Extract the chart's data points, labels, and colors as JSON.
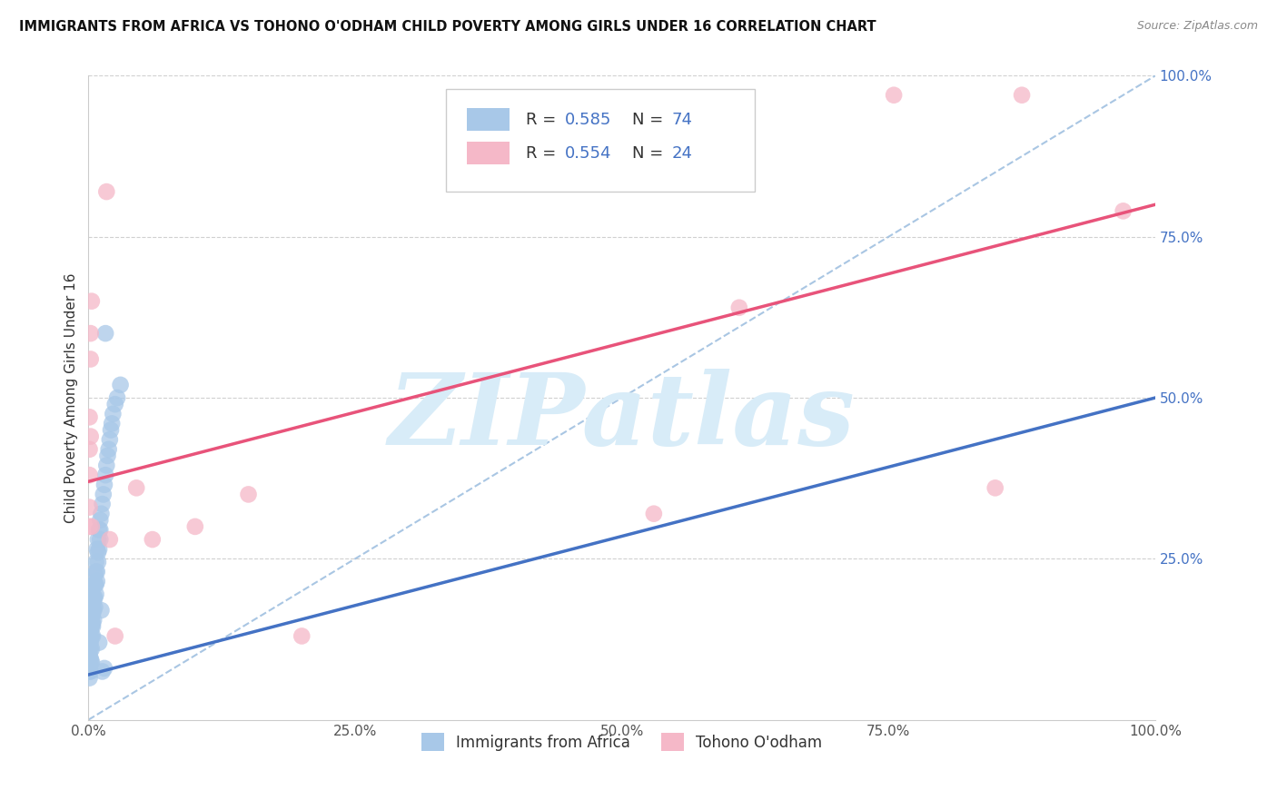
{
  "title": "IMMIGRANTS FROM AFRICA VS TOHONO O'ODHAM CHILD POVERTY AMONG GIRLS UNDER 16 CORRELATION CHART",
  "source": "Source: ZipAtlas.com",
  "ylabel": "Child Poverty Among Girls Under 16",
  "xlim": [
    0.0,
    1.0
  ],
  "ylim": [
    0.0,
    1.0
  ],
  "xticks": [
    0.0,
    0.25,
    0.5,
    0.75,
    1.0
  ],
  "xticklabels": [
    "0.0%",
    "25.0%",
    "50.0%",
    "75.0%",
    "100.0%"
  ],
  "yticks": [
    0.25,
    0.5,
    0.75,
    1.0
  ],
  "yticklabels": [
    "25.0%",
    "50.0%",
    "75.0%",
    "100.0%"
  ],
  "legend_R1": "0.585",
  "legend_N1": "74",
  "legend_R2": "0.554",
  "legend_N2": "24",
  "blue_color": "#a8c8e8",
  "pink_color": "#f5b8c8",
  "blue_line_color": "#4472c4",
  "pink_line_color": "#e8537a",
  "blue_dash_color": "#a0c0e0",
  "watermark_text": "ZIPatlas",
  "watermark_color": "#d8ecf8",
  "background_color": "#ffffff",
  "grid_color": "#d0d0d0",
  "blue_dots": [
    [
      0.001,
      0.085
    ],
    [
      0.001,
      0.1
    ],
    [
      0.001,
      0.12
    ],
    [
      0.001,
      0.095
    ],
    [
      0.001,
      0.11
    ],
    [
      0.001,
      0.075
    ],
    [
      0.001,
      0.13
    ],
    [
      0.001,
      0.08
    ],
    [
      0.001,
      0.145
    ],
    [
      0.001,
      0.065
    ],
    [
      0.002,
      0.155
    ],
    [
      0.002,
      0.09
    ],
    [
      0.002,
      0.13
    ],
    [
      0.002,
      0.11
    ],
    [
      0.002,
      0.075
    ],
    [
      0.002,
      0.14
    ],
    [
      0.002,
      0.12
    ],
    [
      0.002,
      0.095
    ],
    [
      0.003,
      0.17
    ],
    [
      0.003,
      0.13
    ],
    [
      0.003,
      0.11
    ],
    [
      0.003,
      0.145
    ],
    [
      0.003,
      0.09
    ],
    [
      0.003,
      0.155
    ],
    [
      0.004,
      0.19
    ],
    [
      0.004,
      0.15
    ],
    [
      0.004,
      0.13
    ],
    [
      0.004,
      0.165
    ],
    [
      0.004,
      0.175
    ],
    [
      0.004,
      0.145
    ],
    [
      0.005,
      0.21
    ],
    [
      0.005,
      0.17
    ],
    [
      0.005,
      0.155
    ],
    [
      0.005,
      0.185
    ],
    [
      0.005,
      0.19
    ],
    [
      0.006,
      0.225
    ],
    [
      0.006,
      0.19
    ],
    [
      0.006,
      0.175
    ],
    [
      0.006,
      0.21
    ],
    [
      0.007,
      0.245
    ],
    [
      0.007,
      0.21
    ],
    [
      0.007,
      0.195
    ],
    [
      0.007,
      0.23
    ],
    [
      0.008,
      0.265
    ],
    [
      0.008,
      0.23
    ],
    [
      0.008,
      0.215
    ],
    [
      0.009,
      0.28
    ],
    [
      0.009,
      0.245
    ],
    [
      0.009,
      0.26
    ],
    [
      0.01,
      0.295
    ],
    [
      0.01,
      0.265
    ],
    [
      0.01,
      0.12
    ],
    [
      0.011,
      0.31
    ],
    [
      0.011,
      0.28
    ],
    [
      0.011,
      0.295
    ],
    [
      0.012,
      0.32
    ],
    [
      0.012,
      0.17
    ],
    [
      0.013,
      0.335
    ],
    [
      0.013,
      0.075
    ],
    [
      0.014,
      0.35
    ],
    [
      0.015,
      0.365
    ],
    [
      0.015,
      0.08
    ],
    [
      0.016,
      0.38
    ],
    [
      0.016,
      0.6
    ],
    [
      0.017,
      0.395
    ],
    [
      0.018,
      0.41
    ],
    [
      0.019,
      0.42
    ],
    [
      0.02,
      0.435
    ],
    [
      0.021,
      0.45
    ],
    [
      0.022,
      0.46
    ],
    [
      0.023,
      0.475
    ],
    [
      0.025,
      0.49
    ],
    [
      0.027,
      0.5
    ],
    [
      0.03,
      0.52
    ]
  ],
  "pink_dots": [
    [
      0.001,
      0.3
    ],
    [
      0.001,
      0.38
    ],
    [
      0.001,
      0.42
    ],
    [
      0.001,
      0.47
    ],
    [
      0.001,
      0.33
    ],
    [
      0.002,
      0.56
    ],
    [
      0.002,
      0.6
    ],
    [
      0.002,
      0.44
    ],
    [
      0.003,
      0.65
    ],
    [
      0.017,
      0.82
    ],
    [
      0.02,
      0.28
    ],
    [
      0.045,
      0.36
    ],
    [
      0.53,
      0.32
    ],
    [
      0.85,
      0.36
    ],
    [
      0.755,
      0.97
    ],
    [
      0.875,
      0.97
    ],
    [
      0.61,
      0.64
    ],
    [
      0.97,
      0.79
    ],
    [
      0.1,
      0.3
    ],
    [
      0.15,
      0.35
    ],
    [
      0.2,
      0.13
    ],
    [
      0.025,
      0.13
    ],
    [
      0.06,
      0.28
    ],
    [
      0.003,
      0.3
    ]
  ],
  "blue_line": [
    0.0,
    0.07,
    1.0,
    0.5
  ],
  "pink_line": [
    0.0,
    0.37,
    1.0,
    0.8
  ],
  "blue_dash_line": [
    0.0,
    0.0,
    1.0,
    1.0
  ]
}
